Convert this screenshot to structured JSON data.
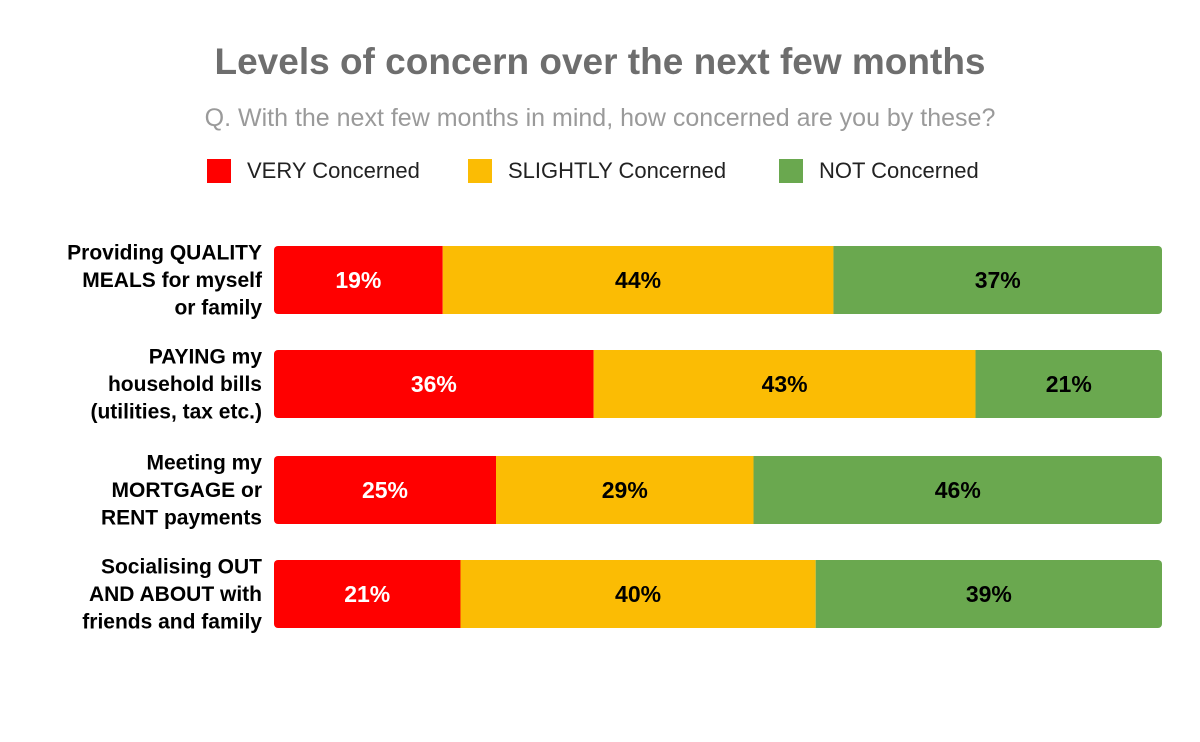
{
  "chart_data": {
    "type": "bar",
    "orientation": "horizontal",
    "stacked": true,
    "title": "Levels of concern over the next few months",
    "subtitle": "Q. With the next few months in mind, how concerned are you by these?",
    "legend_position": "top",
    "grid": false,
    "xlim": [
      0,
      100
    ],
    "categories": [
      [
        "Providing QUALITY",
        "MEALS for myself",
        "or family"
      ],
      [
        "PAYING my",
        "household bills",
        "(utilities, tax etc.)"
      ],
      [
        "Meeting my",
        "MORTGAGE or",
        "RENT payments"
      ],
      [
        "Socialising OUT",
        "AND ABOUT with",
        "friends and family"
      ]
    ],
    "series": [
      {
        "name": "VERY Concerned",
        "color": "#ff0000",
        "label_color": "#ffffff",
        "values": [
          19,
          36,
          25,
          21
        ],
        "labels": [
          "19%",
          "36%",
          "25%",
          "21%"
        ]
      },
      {
        "name": "SLIGHTLY Concerned",
        "color": "#fbbc04",
        "label_color": "#000000",
        "values": [
          44,
          43,
          29,
          40
        ],
        "labels": [
          "44%",
          "43%",
          "29%",
          "40%"
        ]
      },
      {
        "name": "NOT Concerned",
        "color": "#6aa84f",
        "label_color": "#000000",
        "values": [
          37,
          21,
          46,
          39
        ],
        "labels": [
          "37%",
          "21%",
          "46%",
          "39%"
        ]
      }
    ]
  }
}
